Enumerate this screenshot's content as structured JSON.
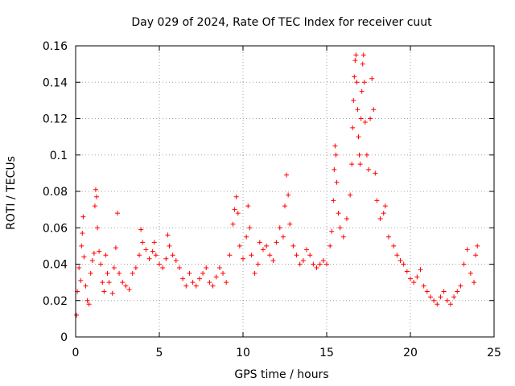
{
  "chart_data": {
    "type": "scatter",
    "title": "Day 029 of 2024, Rate Of TEC Index for receiver cuut",
    "xlabel": "GPS time / hours",
    "ylabel": "ROTI / TECUs",
    "xlim": [
      0,
      25
    ],
    "ylim": [
      0,
      0.16
    ],
    "x_ticks": [
      0,
      5,
      10,
      15,
      20,
      25
    ],
    "x_tick_labels": [
      "0",
      "5",
      "10",
      "15",
      "20",
      "25"
    ],
    "y_ticks": [
      0,
      0.02,
      0.04,
      0.06,
      0.08,
      0.1,
      0.12,
      0.14,
      0.16
    ],
    "y_tick_labels": [
      "0",
      "0.02",
      "0.04",
      "0.06",
      "0.08",
      "0.1",
      "0.12",
      "0.14",
      "0.16"
    ],
    "grid": true,
    "marker": "+",
    "series": [
      {
        "name": "ROTI",
        "color": "#ff0000",
        "points": [
          [
            0.05,
            0.012
          ],
          [
            0.1,
            0.025
          ],
          [
            0.2,
            0.038
          ],
          [
            0.3,
            0.031
          ],
          [
            0.35,
            0.05
          ],
          [
            0.4,
            0.057
          ],
          [
            0.45,
            0.066
          ],
          [
            0.5,
            0.044
          ],
          [
            0.6,
            0.028
          ],
          [
            0.7,
            0.02
          ],
          [
            0.8,
            0.018
          ],
          [
            0.9,
            0.035
          ],
          [
            1.0,
            0.042
          ],
          [
            1.1,
            0.046
          ],
          [
            1.15,
            0.072
          ],
          [
            1.2,
            0.081
          ],
          [
            1.25,
            0.077
          ],
          [
            1.3,
            0.06
          ],
          [
            1.4,
            0.047
          ],
          [
            1.5,
            0.04
          ],
          [
            1.6,
            0.03
          ],
          [
            1.7,
            0.025
          ],
          [
            1.8,
            0.045
          ],
          [
            1.9,
            0.035
          ],
          [
            2.0,
            0.03
          ],
          [
            2.2,
            0.024
          ],
          [
            2.3,
            0.038
          ],
          [
            2.4,
            0.049
          ],
          [
            2.5,
            0.068
          ],
          [
            2.6,
            0.035
          ],
          [
            2.8,
            0.03
          ],
          [
            3.0,
            0.028
          ],
          [
            3.2,
            0.026
          ],
          [
            3.4,
            0.035
          ],
          [
            3.6,
            0.038
          ],
          [
            3.8,
            0.045
          ],
          [
            3.9,
            0.059
          ],
          [
            4.0,
            0.052
          ],
          [
            4.2,
            0.048
          ],
          [
            4.4,
            0.043
          ],
          [
            4.6,
            0.047
          ],
          [
            4.7,
            0.052
          ],
          [
            4.8,
            0.045
          ],
          [
            5.0,
            0.04
          ],
          [
            5.2,
            0.038
          ],
          [
            5.4,
            0.043
          ],
          [
            5.5,
            0.056
          ],
          [
            5.6,
            0.05
          ],
          [
            5.8,
            0.045
          ],
          [
            6.0,
            0.042
          ],
          [
            6.2,
            0.038
          ],
          [
            6.4,
            0.032
          ],
          [
            6.6,
            0.028
          ],
          [
            6.8,
            0.035
          ],
          [
            7.0,
            0.03
          ],
          [
            7.2,
            0.028
          ],
          [
            7.4,
            0.032
          ],
          [
            7.6,
            0.035
          ],
          [
            7.8,
            0.038
          ],
          [
            8.0,
            0.03
          ],
          [
            8.2,
            0.028
          ],
          [
            8.4,
            0.033
          ],
          [
            8.6,
            0.038
          ],
          [
            8.8,
            0.035
          ],
          [
            9.0,
            0.03
          ],
          [
            9.2,
            0.045
          ],
          [
            9.4,
            0.062
          ],
          [
            9.5,
            0.07
          ],
          [
            9.6,
            0.077
          ],
          [
            9.7,
            0.068
          ],
          [
            9.8,
            0.05
          ],
          [
            10.0,
            0.043
          ],
          [
            10.2,
            0.055
          ],
          [
            10.3,
            0.072
          ],
          [
            10.4,
            0.06
          ],
          [
            10.5,
            0.045
          ],
          [
            10.7,
            0.035
          ],
          [
            10.9,
            0.04
          ],
          [
            11.0,
            0.052
          ],
          [
            11.2,
            0.048
          ],
          [
            11.4,
            0.05
          ],
          [
            11.6,
            0.045
          ],
          [
            11.8,
            0.042
          ],
          [
            12.0,
            0.052
          ],
          [
            12.2,
            0.06
          ],
          [
            12.4,
            0.055
          ],
          [
            12.5,
            0.072
          ],
          [
            12.6,
            0.089
          ],
          [
            12.7,
            0.078
          ],
          [
            12.8,
            0.062
          ],
          [
            13.0,
            0.05
          ],
          [
            13.2,
            0.045
          ],
          [
            13.4,
            0.04
          ],
          [
            13.6,
            0.042
          ],
          [
            13.8,
            0.048
          ],
          [
            14.0,
            0.045
          ],
          [
            14.2,
            0.04
          ],
          [
            14.4,
            0.038
          ],
          [
            14.6,
            0.04
          ],
          [
            14.8,
            0.042
          ],
          [
            15.0,
            0.04
          ],
          [
            15.2,
            0.05
          ],
          [
            15.3,
            0.058
          ],
          [
            15.4,
            0.075
          ],
          [
            15.45,
            0.092
          ],
          [
            15.5,
            0.105
          ],
          [
            15.55,
            0.1
          ],
          [
            15.6,
            0.085
          ],
          [
            15.7,
            0.068
          ],
          [
            15.8,
            0.06
          ],
          [
            16.0,
            0.055
          ],
          [
            16.2,
            0.065
          ],
          [
            16.4,
            0.078
          ],
          [
            16.5,
            0.095
          ],
          [
            16.55,
            0.115
          ],
          [
            16.6,
            0.13
          ],
          [
            16.65,
            0.143
          ],
          [
            16.7,
            0.152
          ],
          [
            16.75,
            0.155
          ],
          [
            16.8,
            0.14
          ],
          [
            16.85,
            0.125
          ],
          [
            16.9,
            0.11
          ],
          [
            16.95,
            0.1
          ],
          [
            17.0,
            0.095
          ],
          [
            17.05,
            0.12
          ],
          [
            17.1,
            0.135
          ],
          [
            17.15,
            0.15
          ],
          [
            17.2,
            0.155
          ],
          [
            17.25,
            0.14
          ],
          [
            17.3,
            0.118
          ],
          [
            17.4,
            0.1
          ],
          [
            17.5,
            0.092
          ],
          [
            17.6,
            0.12
          ],
          [
            17.7,
            0.142
          ],
          [
            17.8,
            0.125
          ],
          [
            17.9,
            0.09
          ],
          [
            18.0,
            0.075
          ],
          [
            18.2,
            0.065
          ],
          [
            18.4,
            0.068
          ],
          [
            18.5,
            0.072
          ],
          [
            18.7,
            0.055
          ],
          [
            19.0,
            0.05
          ],
          [
            19.2,
            0.045
          ],
          [
            19.4,
            0.042
          ],
          [
            19.6,
            0.04
          ],
          [
            19.8,
            0.036
          ],
          [
            20.0,
            0.032
          ],
          [
            20.2,
            0.03
          ],
          [
            20.4,
            0.033
          ],
          [
            20.6,
            0.037
          ],
          [
            20.8,
            0.028
          ],
          [
            21.0,
            0.025
          ],
          [
            21.2,
            0.022
          ],
          [
            21.4,
            0.02
          ],
          [
            21.6,
            0.018
          ],
          [
            21.8,
            0.022
          ],
          [
            22.0,
            0.025
          ],
          [
            22.2,
            0.02
          ],
          [
            22.4,
            0.018
          ],
          [
            22.6,
            0.022
          ],
          [
            22.8,
            0.025
          ],
          [
            23.0,
            0.028
          ],
          [
            23.2,
            0.04
          ],
          [
            23.4,
            0.048
          ],
          [
            23.6,
            0.035
          ],
          [
            23.8,
            0.03
          ],
          [
            23.9,
            0.045
          ],
          [
            24.0,
            0.05
          ]
        ]
      }
    ]
  }
}
